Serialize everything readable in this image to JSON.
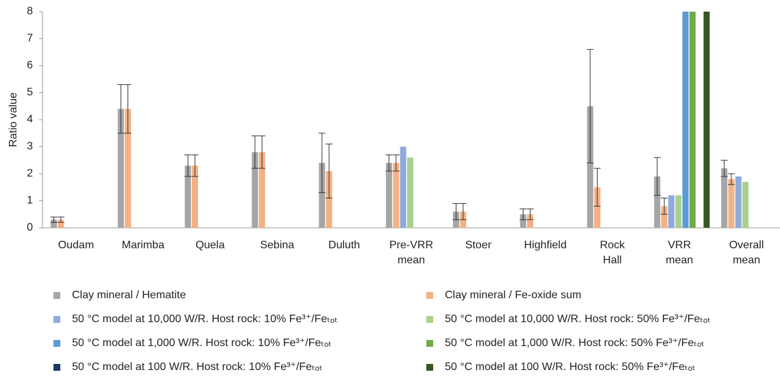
{
  "chart_data": {
    "type": "bar",
    "y_label": "Ratio value",
    "categories": [
      "Oudam",
      "Marimba",
      "Quela",
      "Sebina",
      "Duluth",
      "Pre-VRR mean",
      "Stoer",
      "Highfield",
      "Rock Hall",
      "VRR mean",
      "Overall mean"
    ],
    "ylim": [
      0,
      8
    ],
    "yticks": [
      0,
      1,
      2,
      3,
      4,
      5,
      6,
      7,
      8
    ],
    "grid": false,
    "series": [
      {
        "name": "Clay mineral / Hematite",
        "color": "#a5a5a5",
        "values": [
          0.3,
          4.4,
          2.3,
          2.8,
          2.4,
          2.4,
          0.6,
          0.5,
          4.5,
          1.9,
          2.2
        ],
        "errors": [
          0.1,
          0.9,
          0.4,
          0.6,
          1.1,
          0.3,
          0.3,
          0.2,
          2.1,
          0.7,
          0.3
        ]
      },
      {
        "name": "Clay mineral / Fe-oxide sum",
        "color": "#f4b183",
        "values": [
          0.3,
          4.4,
          2.3,
          2.8,
          2.1,
          2.4,
          0.6,
          0.5,
          1.5,
          0.8,
          1.8
        ],
        "errors": [
          0.1,
          0.9,
          0.4,
          0.6,
          1.0,
          0.3,
          0.3,
          0.2,
          0.7,
          0.3,
          0.2
        ]
      },
      {
        "name": "50 °C model at 10,000 W/R. Host rock: 10% Fe³⁺/Feₜₒₜ",
        "color": "#8faadc",
        "values": [
          null,
          null,
          null,
          null,
          null,
          3.0,
          null,
          null,
          null,
          1.2,
          1.9
        ]
      },
      {
        "name": "50 °C model at 10,000 W/R. Host rock: 50% Fe³⁺/Feₜₒₜ",
        "color": "#a9d18e",
        "values": [
          null,
          null,
          null,
          null,
          null,
          2.6,
          null,
          null,
          null,
          1.2,
          1.7
        ]
      },
      {
        "name": "50 °C model at 1,000 W/R. Host rock: 10% Fe³⁺/Feₜₒₜ",
        "color": "#5b9bd5",
        "values": [
          null,
          null,
          null,
          null,
          null,
          null,
          null,
          null,
          null,
          8,
          null
        ]
      },
      {
        "name": "50 °C model at 1,000 W/R. Host rock: 50% Fe³⁺/Feₜₒₜ",
        "color": "#70ad47",
        "values": [
          null,
          null,
          null,
          null,
          null,
          null,
          null,
          null,
          null,
          8,
          null
        ]
      },
      {
        "name": "50 °C model at 100 W/R. Host rock: 10% Fe³⁺/Feₜₒₜ",
        "color": "#203864",
        "values": [
          null,
          null,
          null,
          null,
          null,
          null,
          null,
          null,
          null,
          null,
          null
        ]
      },
      {
        "name": "50 °C model at 100 W/R. Host rock: 50% Fe³⁺/Feₜₒₜ",
        "color": "#375623",
        "values": [
          null,
          null,
          null,
          null,
          null,
          null,
          null,
          null,
          null,
          8,
          null
        ]
      }
    ]
  }
}
